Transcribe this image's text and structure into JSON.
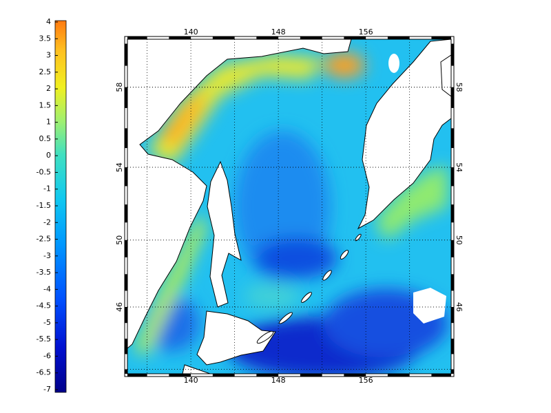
{
  "colorbar": {
    "lim": [
      -7,
      4
    ],
    "ticks": [
      4,
      3.5,
      3,
      2.5,
      2,
      1.5,
      1,
      0.5,
      0,
      -0.5,
      -1,
      -1.5,
      -2,
      -2.5,
      -3,
      -3.5,
      -4,
      -4.5,
      -5,
      -5.5,
      -6,
      -6.5,
      -7
    ]
  },
  "map": {
    "projection": "mercator",
    "lonlim": [
      134.2,
      163.8
    ],
    "latlim": [
      41.7,
      60.2
    ],
    "lon_ticks": [
      140,
      148,
      156
    ],
    "lat_ticks": [
      58,
      54,
      50,
      46
    ],
    "grid": true
  }
}
